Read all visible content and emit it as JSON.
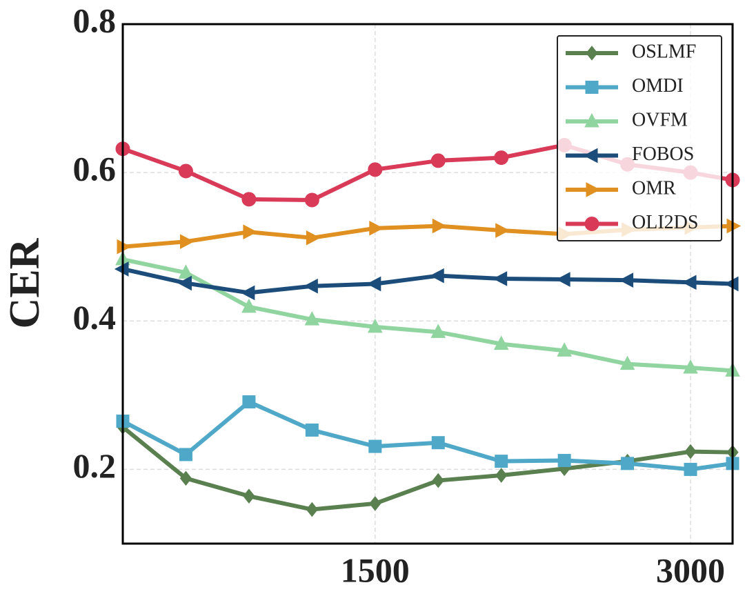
{
  "chart_data": {
    "type": "line",
    "ylabel": "CER",
    "x": [
      300,
      600,
      900,
      1200,
      1500,
      1800,
      2100,
      2400,
      2700,
      3000,
      3200
    ],
    "xlim": [
      300,
      3200
    ],
    "xticks": [
      1500,
      3000
    ],
    "ylim": [
      0.1,
      0.8
    ],
    "yticks": [
      0.2,
      0.4,
      0.6,
      0.8
    ],
    "grid": true,
    "legend": "upper right",
    "series": [
      {
        "name": "OSLMF",
        "color": "#5a8050",
        "marker": "diamond",
        "values": [
          0.257,
          0.188,
          0.164,
          0.146,
          0.154,
          0.185,
          0.192,
          0.201,
          0.211,
          0.224,
          0.223
        ]
      },
      {
        "name": "OMDI",
        "color": "#4fa8c8",
        "marker": "square",
        "values": [
          0.265,
          0.22,
          0.291,
          0.253,
          0.231,
          0.236,
          0.211,
          0.212,
          0.208,
          0.2,
          0.208
        ]
      },
      {
        "name": "OVFM",
        "color": "#90d4a0",
        "marker": "triangle-up",
        "values": [
          0.483,
          0.465,
          0.419,
          0.402,
          0.392,
          0.385,
          0.369,
          0.36,
          0.342,
          0.337,
          0.333
        ]
      },
      {
        "name": "FOBOS",
        "color": "#1c4d7a",
        "marker": "triangle-left",
        "values": [
          0.47,
          0.451,
          0.438,
          0.447,
          0.45,
          0.461,
          0.457,
          0.456,
          0.455,
          0.452,
          0.45
        ]
      },
      {
        "name": "OMR",
        "color": "#e09020",
        "marker": "triangle-right",
        "values": [
          0.5,
          0.507,
          0.52,
          0.512,
          0.525,
          0.528,
          0.522,
          0.517,
          0.523,
          0.526,
          0.528
        ]
      },
      {
        "name": "OLI2DS",
        "color": "#d83a58",
        "marker": "circle",
        "values": [
          0.632,
          0.602,
          0.564,
          0.563,
          0.604,
          0.616,
          0.62,
          0.637,
          0.611,
          0.6,
          0.59
        ]
      }
    ]
  }
}
